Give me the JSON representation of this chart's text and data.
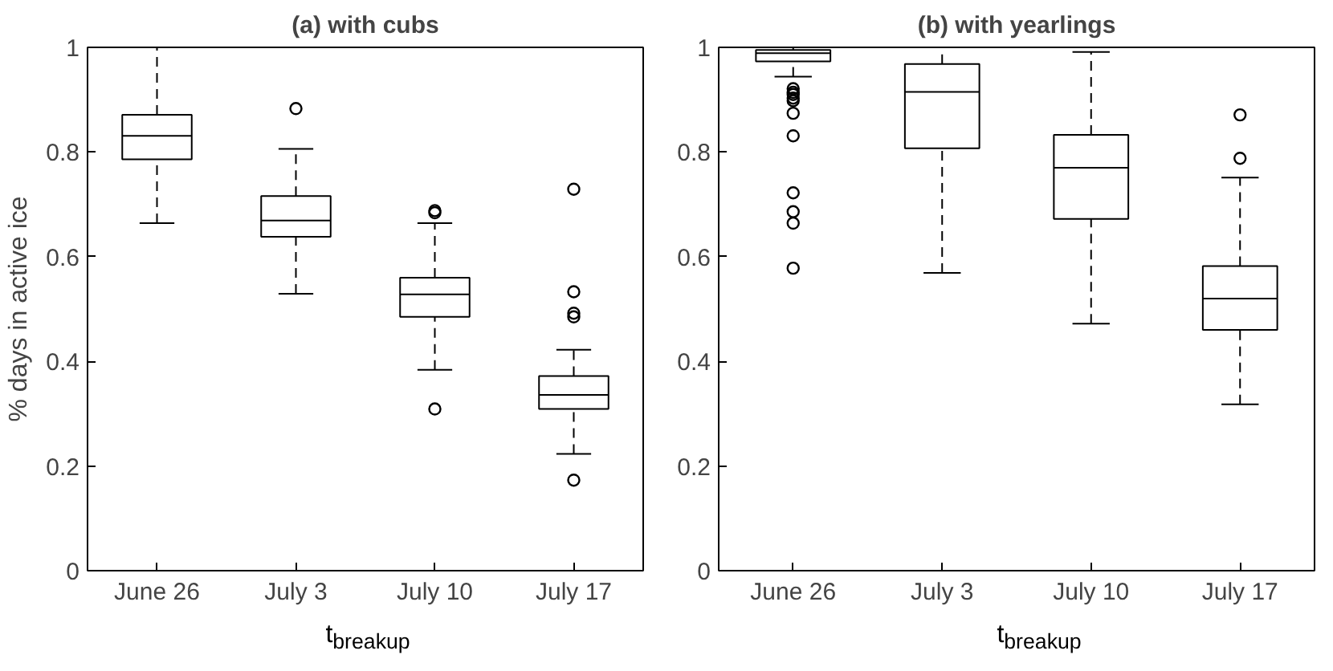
{
  "chart_data": [
    {
      "type": "box",
      "title": "(a) with cubs",
      "xlabel": "t$_{breakup}$",
      "ylabel": "% days in active ice",
      "categories": [
        "June 26",
        "July 3",
        "July 10",
        "July 17"
      ],
      "ylim": [
        0,
        1
      ],
      "yticks": [
        0,
        0.2,
        0.4,
        0.6,
        0.8,
        1
      ],
      "grid": false,
      "marker": "circle",
      "boxes": [
        {
          "low": 0.664,
          "q1": 0.786,
          "median": 0.831,
          "q3": 0.871,
          "high": 1.0
        },
        {
          "low": 0.529,
          "q1": 0.638,
          "median": 0.669,
          "q3": 0.716,
          "high": 0.806,
          "outliers": [
            0.883
          ]
        },
        {
          "low": 0.384,
          "q1": 0.485,
          "median": 0.528,
          "q3": 0.56,
          "high": 0.664,
          "outliers": [
            0.688,
            0.684,
            0.309
          ]
        },
        {
          "low": 0.223,
          "q1": 0.309,
          "median": 0.336,
          "q3": 0.372,
          "high": 0.422,
          "outliers": [
            0.729,
            0.533,
            0.492,
            0.485,
            0.173
          ]
        }
      ]
    },
    {
      "type": "box",
      "title": "(b) with yearlings",
      "xlabel": "t$_{breakup}$",
      "categories": [
        "June 26",
        "July 3",
        "July 10",
        "July 17"
      ],
      "ylim": [
        0,
        1
      ],
      "yticks": [
        0,
        0.2,
        0.4,
        0.6,
        0.8,
        1
      ],
      "grid": false,
      "marker": "circle",
      "boxes": [
        {
          "low": 0.944,
          "q1": 0.973,
          "median": 0.989,
          "q3": 0.995,
          "high": 1.0,
          "outliers": [
            0.921,
            0.914,
            0.91,
            0.903,
            0.898,
            0.874,
            0.831,
            0.722,
            0.686,
            0.664,
            0.578
          ]
        },
        {
          "low": 0.569,
          "q1": 0.807,
          "median": 0.915,
          "q3": 0.968,
          "high": 1.0
        },
        {
          "low": 0.472,
          "q1": 0.672,
          "median": 0.77,
          "q3": 0.833,
          "high": 0.991
        },
        {
          "low": 0.318,
          "q1": 0.46,
          "median": 0.52,
          "q3": 0.582,
          "high": 0.751,
          "outliers": [
            0.871,
            0.788
          ]
        }
      ]
    }
  ]
}
